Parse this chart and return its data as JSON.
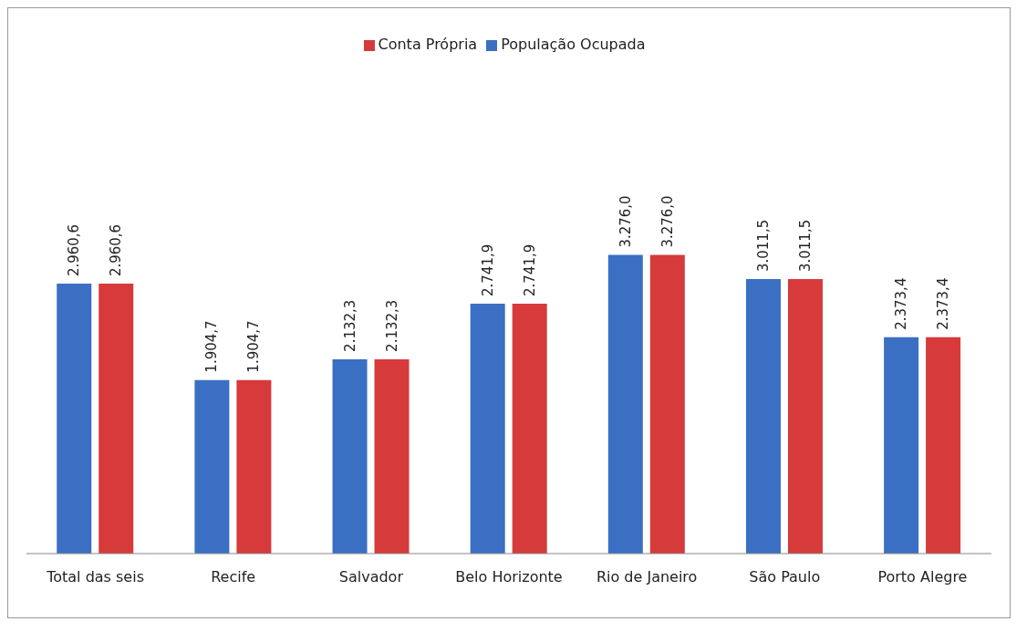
{
  "chart_data": {
    "type": "bar",
    "categories": [
      "Total das seis",
      "Recife",
      "Salvador",
      "Belo Horizonte",
      "Rio de Janeiro",
      "São Paulo",
      "Porto Alegre"
    ],
    "series": [
      {
        "name": "População Ocupada",
        "color": "#3a6fc4",
        "values": [
          2960.6,
          1904.7,
          2132.3,
          2741.9,
          3276.0,
          3011.5,
          2373.4
        ],
        "value_labels": [
          "2.960,6",
          "1.904,7",
          "2.132,3",
          "2.741,9",
          "3.276,0",
          "3.011,5",
          "2.373,4"
        ]
      },
      {
        "name": "Conta Própria",
        "color": "#d63a3a",
        "values": [
          2960.6,
          1904.7,
          2132.3,
          2741.9,
          3276.0,
          3011.5,
          2373.4
        ],
        "value_labels": [
          "2.960,6",
          "1.904,7",
          "2.132,3",
          "2.741,9",
          "3.276,0",
          "3.011,5",
          "2.373,4"
        ]
      }
    ],
    "grid": false,
    "legend": "top"
  }
}
